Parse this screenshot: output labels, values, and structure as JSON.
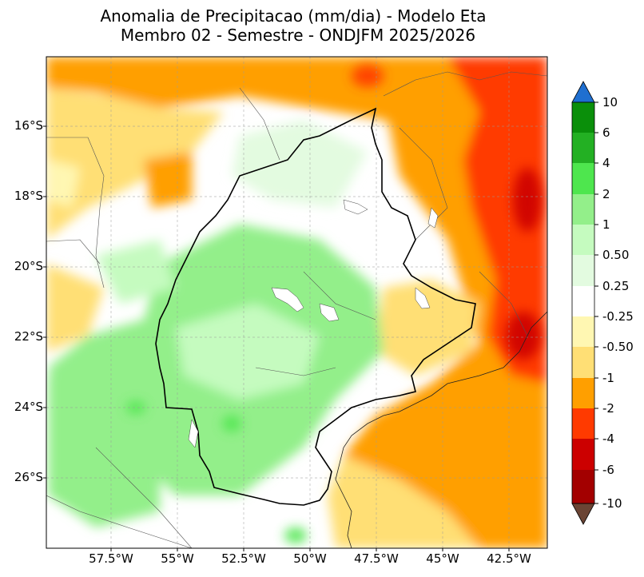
{
  "title_line1": "Anomalia de Precipitacao (mm/dia) - Modelo Eta",
  "title_line2": "Membro 02 - Semestre - ONDJFM 2025/2026",
  "lat_labels": [
    "16°S",
    "18°S",
    "20°S",
    "22°S",
    "24°S",
    "26°S"
  ],
  "lon_labels": [
    "57.5°W",
    "55°W",
    "52.5°W",
    "50°W",
    "47.5°W",
    "45°W",
    "42.5°W"
  ],
  "colorbar": {
    "labels": [
      "10",
      "6",
      "4",
      "2",
      "1",
      "0.50",
      "0.25",
      "-0.25",
      "-0.50",
      "-1",
      "-2",
      "-4",
      "-6",
      "-10"
    ],
    "colors": {
      "over": "#1f6fd0",
      "b6_10": "#0a8f0a",
      "b4_6": "#23b023",
      "b2_4": "#4ee64e",
      "b1_2": "#93ef8a",
      "b05_1": "#c5fbbf",
      "b025_05": "#e3fbe0",
      "neutral": "#ffffff",
      "bm05_m025": "#fff7b2",
      "bm1_m05": "#ffdf75",
      "bm2_m1": "#ff9f00",
      "bm4_m2": "#ff3a00",
      "bm6_m4": "#cc0000",
      "bm10_m6": "#a30000",
      "under": "#6b4434"
    }
  }
}
